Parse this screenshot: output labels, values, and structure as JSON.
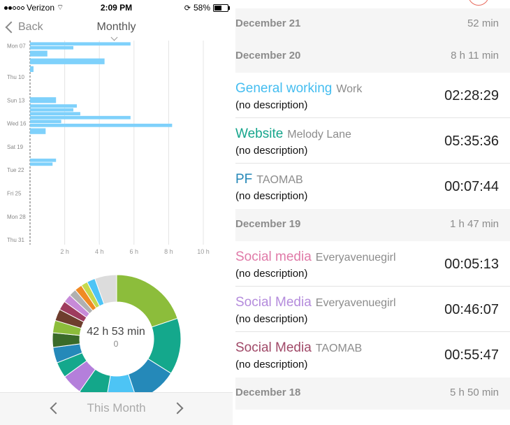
{
  "status": {
    "carrier": "Verizon",
    "time": "2:09 PM",
    "battery": "58%",
    "battery_level": 0.58
  },
  "nav": {
    "back_label": "Back",
    "title": "Monthly"
  },
  "chart_data": {
    "type": "bar",
    "orientation": "horizontal",
    "categories": [
      "Mon 07",
      "",
      "",
      "",
      "Thu 10",
      "",
      "",
      "Sun 13",
      "",
      "",
      "Wed 16",
      "",
      "",
      "Sat 19",
      "",
      "",
      "Tue 22",
      "",
      "",
      "Fri 25",
      "",
      "",
      "Mon 28",
      "",
      "",
      "Thu 31"
    ],
    "series": [
      {
        "values": [
          [
            5.8,
            2.5
          ],
          [
            1.0
          ],
          [
            4.3
          ],
          [
            0.2
          ],
          [],
          [],
          [],
          [
            1.5
          ],
          [
            2.7,
            2.5
          ],
          [
            2.9,
            5.8
          ],
          [
            1.8,
            8.2
          ],
          [
            0.9
          ],
          [],
          [],
          [],
          [
            1.5,
            1.3
          ],
          [],
          [],
          [],
          [],
          [],
          [],
          [],
          [],
          [],
          []
        ]
      }
    ],
    "xticks": [
      "2 h",
      "4 h",
      "6 h",
      "8 h",
      "10 h"
    ],
    "xlim": [
      0,
      10
    ],
    "color": "#7fd1fb",
    "grid": true
  },
  "donut": {
    "total": "42 h 53 min",
    "sub": "0",
    "segments": [
      {
        "value": 19.0,
        "color": "#8cbd3b"
      },
      {
        "value": 13.6,
        "color": "#14a88c"
      },
      {
        "value": 10.5,
        "color": "#2589b9"
      },
      {
        "value": 7.5,
        "color": "#4dc4f5"
      },
      {
        "value": 6.8,
        "color": "#13a78a"
      },
      {
        "value": 5.0,
        "color": "#b47fdb"
      },
      {
        "value": 3.8,
        "color": "#14a88c"
      },
      {
        "value": 3.8,
        "color": "#2589b9"
      },
      {
        "value": 3.5,
        "color": "#3a6b2a"
      },
      {
        "value": 3.0,
        "color": "#8cbd3b"
      },
      {
        "value": 2.8,
        "color": "#6e3d2d"
      },
      {
        "value": 2.2,
        "color": "#9e3b5e"
      },
      {
        "value": 2.0,
        "color": "#c78ad8"
      },
      {
        "value": 1.8,
        "color": "#b0b0b0"
      },
      {
        "value": 1.8,
        "color": "#f08a24"
      },
      {
        "value": 1.6,
        "color": "#c6d94d"
      },
      {
        "value": 2.0,
        "color": "#4dc4f5"
      },
      {
        "value": 5.3,
        "color": "#dcdcdc"
      }
    ]
  },
  "footer": {
    "label": "This Month"
  },
  "right": {
    "top_header": {
      "date": "December 21",
      "total": "52 min"
    },
    "groups": [
      {
        "date": "December 20",
        "total": "8 h 11 min",
        "entries": [
          {
            "title": "General working",
            "project": "Work",
            "desc": "(no description)",
            "duration": "02:28:29",
            "color": "#44bdf0"
          },
          {
            "title": "Website",
            "project": "Melody Lane",
            "desc": "(no description)",
            "duration": "05:35:36",
            "color": "#16a58c"
          },
          {
            "title": "PF",
            "project": "TAOMAB",
            "desc": "(no description)",
            "duration": "00:07:44",
            "color": "#2588b8"
          }
        ]
      },
      {
        "date": "December 19",
        "total": "1 h 47 min",
        "entries": [
          {
            "title": "Social media",
            "project": "Everyavenuegirl",
            "desc": "(no description)",
            "duration": "00:05:13",
            "color": "#e07aa8"
          },
          {
            "title": "Social Media",
            "project": "Everyavenuegirl",
            "desc": "(no description)",
            "duration": "00:46:07",
            "color": "#b48bdc"
          },
          {
            "title": "Social Media",
            "project": "TAOMAB",
            "desc": "(no description)",
            "duration": "00:55:47",
            "color": "#a04968"
          }
        ]
      },
      {
        "date": "December 18",
        "total": "5 h 50 min",
        "entries": []
      }
    ]
  }
}
